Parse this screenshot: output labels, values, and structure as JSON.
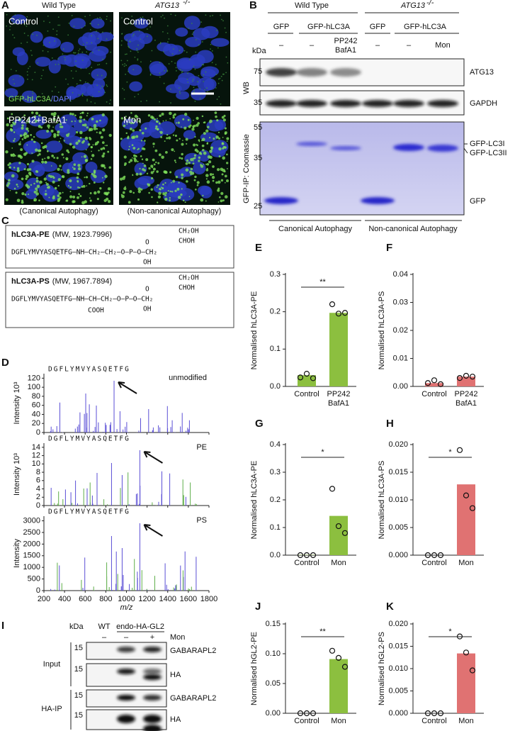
{
  "figure": {
    "panel_labels": [
      "A",
      "B",
      "C",
      "D",
      "E",
      "F",
      "G",
      "H",
      "I",
      "J",
      "K"
    ],
    "a": {
      "wild_type": "Wild Type",
      "mutant": "ATG13",
      "mutant_sup": "-/-",
      "images": [
        "Control",
        "Control",
        "PP242+BafA1",
        "Mon"
      ],
      "stain_gfp": "GFP-hLC3A",
      "stain_dapi": "/DAPI",
      "captions": [
        "(Canonical Autophagy)",
        "(Non-canonical Autophagy)"
      ]
    },
    "b": {
      "groups": [
        "Wild Type",
        "ATG13"
      ],
      "group_sup": "-/-",
      "constructs": [
        "GFP",
        "GFP-hLC3A",
        "GFP",
        "GFP-hLC3A"
      ],
      "treatments": [
        "–",
        "–",
        "PP242\nBafA1",
        "–",
        "–",
        "Mon"
      ],
      "kda": "kDa",
      "markers_wb": [
        75,
        35
      ],
      "markers_ip": [
        55,
        35,
        25
      ],
      "bands": [
        "ATG13",
        "GAPDH",
        "GFP-LC3I",
        "GFP-LC3II",
        "GFP"
      ],
      "wb": "WB",
      "ip": "GFP-IP: Coomassie",
      "conditions": [
        "Canonical Autophagy",
        "Non-canonical Autophagy"
      ]
    },
    "c": [
      {
        "name": "hLC3A-PE",
        "mw": "(MW, 1923.7996)",
        "sequence": "DGFLYMVYASQETFG",
        "chain": "–NH–CH₂–CH₂–O–P–O–CH₂",
        "head_top": "CH₂OH",
        "head_mid": "CHOH",
        "oxo": "O",
        "hydroxyl": "OH"
      },
      {
        "name": "hLC3A-PS",
        "mw": "(MW, 1967.7894)",
        "sequence": "DGFLYMVYASQETFG",
        "chain": "–NH–CH–CH₂–O–P–O–CH₂",
        "head_top": "CH₂OH",
        "head_mid": "CHOH",
        "oxo": "O",
        "hydroxyl": "OH",
        "carboxyl": "COOH"
      }
    ],
    "d": {
      "xlabel": "m/z",
      "xlim": [
        200,
        1800
      ],
      "xticks": [
        200,
        400,
        600,
        800,
        1000,
        1200,
        1400,
        1600,
        1800
      ],
      "spectra": [
        {
          "sequence": "DGFLYMVYASQETFG",
          "label": "unmodified",
          "ylabel": "Intensity 10³",
          "ylim": [
            0,
            130
          ],
          "yticks": [
            0,
            20,
            40,
            60,
            80,
            100,
            120
          ]
        },
        {
          "sequence": "DGFLYMVYASQETFG",
          "label": "PE",
          "ylabel": "Intensity 10³",
          "ylim": [
            0,
            15
          ],
          "yticks": [
            0,
            2,
            4,
            6,
            8,
            10,
            12,
            14
          ]
        },
        {
          "sequence": "DGFLYMVYASQETFG",
          "label": "PS",
          "ylabel": "Intensity",
          "ylim": [
            0,
            3200
          ],
          "yticks": [
            0,
            500,
            1000,
            1500,
            2000,
            2500,
            3000
          ]
        }
      ]
    },
    "i": {
      "kda": "kDa",
      "lanes": [
        "WT",
        "endo-HA-GL2"
      ],
      "treat_label": "Mon",
      "treatments": [
        "–",
        "–",
        "+"
      ],
      "markers": [
        15,
        15,
        15,
        15
      ],
      "groups": [
        "Input",
        "HA-IP"
      ],
      "bands": [
        "GABARAPL2",
        "HA",
        "GABARAPL2",
        "HA"
      ]
    }
  },
  "chart_data": [
    {
      "type": "bar",
      "ylabel": "Normalised hLC3A-PE",
      "categories": [
        "Control",
        "PP242\nBafA1"
      ],
      "values": [
        0.03,
        0.197
      ],
      "points": [
        [
          0.024,
          0.034,
          0.022
        ],
        [
          0.22,
          0.195,
          0.197
        ]
      ],
      "color": "#8cbf3f",
      "ylim": [
        0,
        0.3
      ],
      "yticks": [
        {
          "value": 0,
          "label": "0.0"
        },
        0.1,
        0.2,
        0.3
      ],
      "significance": "**"
    },
    {
      "type": "bar",
      "ylabel": "Normalised hLC3A-PS",
      "categories": [
        "Control",
        "PP242\nBafA1"
      ],
      "values": [
        0.0012,
        0.0035
      ],
      "points": [
        [
          0.0012,
          0.0022,
          0.0008
        ],
        [
          0.003,
          0.0038,
          0.0035
        ]
      ],
      "color": "#e07272",
      "ylim": [
        0,
        0.04
      ],
      "yticks": [
        {
          "value": 0,
          "label": "0.00"
        },
        0.01,
        0.02,
        0.03,
        0.04
      ]
    },
    {
      "type": "bar",
      "ylabel": "Normalised hLC3A-PE",
      "categories": [
        "Control",
        "Mon"
      ],
      "values": [
        0.001,
        0.142
      ],
      "points": [
        [
          0,
          0,
          0
        ],
        [
          0.24,
          0.105,
          0.08
        ]
      ],
      "color": "#8cbf3f",
      "ylim": [
        0,
        0.4
      ],
      "yticks": [
        {
          "value": 0,
          "label": "0.0"
        },
        0.1,
        0.2,
        0.3,
        0.4
      ],
      "significance": "*"
    },
    {
      "type": "bar",
      "ylabel": "Normalised hLC3A-PS",
      "categories": [
        "Control",
        "Mon"
      ],
      "values": [
        0,
        0.0128
      ],
      "points": [
        [
          0,
          0,
          0
        ],
        [
          0.019,
          0.0108,
          0.0085
        ]
      ],
      "color": "#e07272",
      "ylim": [
        0,
        0.02
      ],
      "yticks": [
        {
          "value": 0,
          "label": "0.000"
        },
        0.005,
        {
          "value": 0.01,
          "label": "0.010"
        },
        0.015,
        {
          "value": 0.02,
          "label": "0.020"
        }
      ],
      "significance": "*"
    },
    {
      "type": "bar",
      "ylabel": "Normalised hGL2-PE",
      "categories": [
        "Control",
        "Mon"
      ],
      "values": [
        0,
        0.091
      ],
      "points": [
        [
          0,
          0,
          0
        ],
        [
          0.105,
          0.093,
          0.078
        ]
      ],
      "color": "#8cbf3f",
      "ylim": [
        0,
        0.15
      ],
      "yticks": [
        {
          "value": 0,
          "label": "0.00"
        },
        0.05,
        {
          "value": 0.1,
          "label": "0.10"
        },
        0.15
      ],
      "significance": "**"
    },
    {
      "type": "bar",
      "ylabel": "Normalised hGL2-PS",
      "categories": [
        "Control",
        "Mon"
      ],
      "values": [
        0,
        0.0134
      ],
      "points": [
        [
          0,
          0,
          0
        ],
        [
          0.0172,
          0.0136,
          0.0096
        ]
      ],
      "color": "#e07272",
      "ylim": [
        0,
        0.02
      ],
      "yticks": [
        {
          "value": 0,
          "label": "0.000"
        },
        0.005,
        {
          "value": 0.01,
          "label": "0.010"
        },
        0.015,
        {
          "value": 0.02,
          "label": "0.020"
        }
      ],
      "significance": "*"
    }
  ]
}
